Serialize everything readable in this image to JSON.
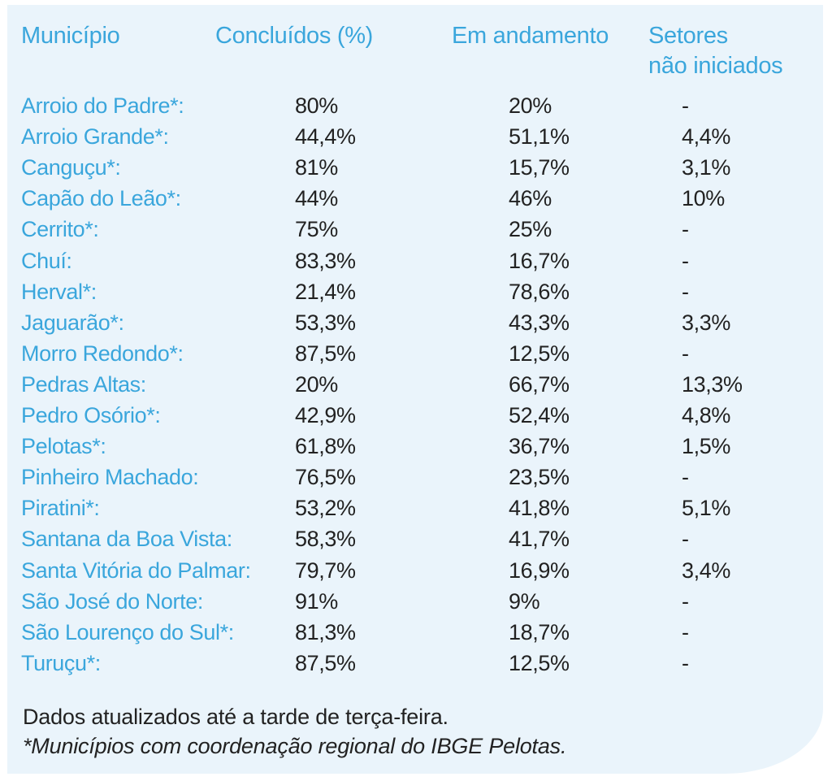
{
  "headers": {
    "municipio": "Município",
    "concluidos": "Concluídos (%)",
    "em_andamento": "Em andamento",
    "setores_line1": "Setores",
    "setores_line2": "não iniciados"
  },
  "rows": [
    {
      "municipio": "Arroio do Padre*:",
      "concluidos": "80%",
      "em_andamento": "20%",
      "nao_iniciados": "-"
    },
    {
      "municipio": "Arroio Grande*:",
      "concluidos": "44,4%",
      "em_andamento": "51,1%",
      "nao_iniciados": "4,4%"
    },
    {
      "municipio": "Canguçu*:",
      "concluidos": "81%",
      "em_andamento": "15,7%",
      "nao_iniciados": "3,1%"
    },
    {
      "municipio": "Capão do Leão*:",
      "concluidos": "44%",
      "em_andamento": "46%",
      "nao_iniciados": "10%"
    },
    {
      "municipio": "Cerrito*:",
      "concluidos": "75%",
      "em_andamento": "25%",
      "nao_iniciados": "-"
    },
    {
      "municipio": "Chuí:",
      "concluidos": "83,3%",
      "em_andamento": "16,7%",
      "nao_iniciados": "-"
    },
    {
      "municipio": "Herval*:",
      "concluidos": "21,4%",
      "em_andamento": "78,6%",
      "nao_iniciados": "-"
    },
    {
      "municipio": "Jaguarão*:",
      "concluidos": "53,3%",
      "em_andamento": "43,3%",
      "nao_iniciados": "3,3%"
    },
    {
      "municipio": "Morro Redondo*:",
      "concluidos": "87,5%",
      "em_andamento": "12,5%",
      "nao_iniciados": "-"
    },
    {
      "municipio": "Pedras Altas:",
      "concluidos": "20%",
      "em_andamento": "66,7%",
      "nao_iniciados": "13,3%"
    },
    {
      "municipio": "Pedro Osório*:",
      "concluidos": "42,9%",
      "em_andamento": "52,4%",
      "nao_iniciados": "4,8%"
    },
    {
      "municipio": "Pelotas*:",
      "concluidos": "61,8%",
      "em_andamento": "36,7%",
      "nao_iniciados": "1,5%"
    },
    {
      "municipio": "Pinheiro Machado:",
      "concluidos": "76,5%",
      "em_andamento": "23,5%",
      "nao_iniciados": "-"
    },
    {
      "municipio": "Piratini*:",
      "concluidos": "53,2%",
      "em_andamento": "41,8%",
      "nao_iniciados": "5,1%"
    },
    {
      "municipio": "Santana da Boa Vista:",
      "concluidos": "58,3%",
      "em_andamento": "41,7%",
      "nao_iniciados": "-"
    },
    {
      "municipio": "Santa Vitória do Palmar:",
      "concluidos": "79,7%",
      "em_andamento": "16,9%",
      "nao_iniciados": "3,4%"
    },
    {
      "municipio": "São José do Norte:",
      "concluidos": "91%",
      "em_andamento": "9%",
      "nao_iniciados": "-"
    },
    {
      "municipio": "São Lourenço do Sul*:",
      "concluidos": "81,3%",
      "em_andamento": "18,7%",
      "nao_iniciados": "-"
    },
    {
      "municipio": "Turuçu*:",
      "concluidos": "87,5%",
      "em_andamento": "12,5%",
      "nao_iniciados": "-"
    }
  ],
  "footnotes": {
    "updated": "Dados atualizados até a tarde de terça-feira.",
    "asterisk": "*Municípios com coordenação regional do IBGE Pelotas."
  },
  "colors": {
    "accent_blue": "#3aa6dc",
    "panel_background": "#eaf4fb",
    "text": "#222222"
  }
}
